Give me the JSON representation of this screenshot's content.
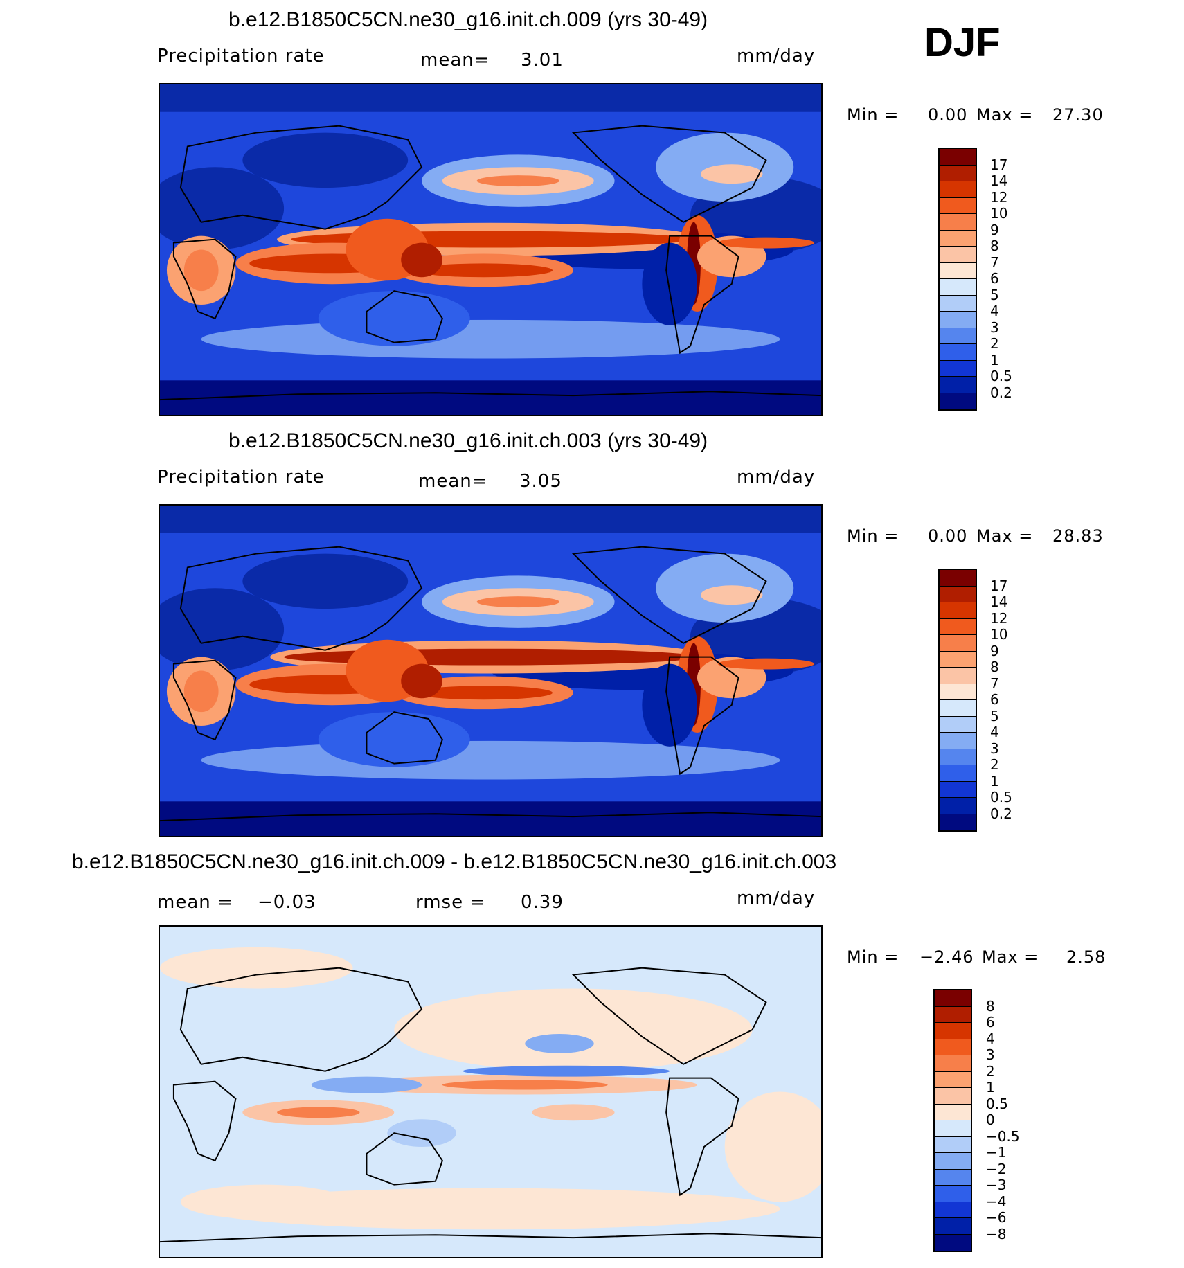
{
  "season": "DJF",
  "panels": [
    {
      "title": "b.e12.B1850C5CN.ne30_g16.init.ch.009 (yrs 30-49)",
      "left_label": "Precipitation  rate",
      "mean_label": "mean=",
      "mean_value": "3.01",
      "units": "mm/day",
      "min_label": "Min  =",
      "min_value": "0.00",
      "max_label": "Max  =",
      "max_value": "27.30",
      "colorbar": {
        "levels": [
          "17",
          "14",
          "12",
          "10",
          "9",
          "8",
          "7",
          "6",
          "5",
          "4",
          "3",
          "2",
          "1",
          "0.5",
          "0.2"
        ],
        "colors": [
          "#7a0000",
          "#b01e00",
          "#d63500",
          "#f05a1e",
          "#f77f4a",
          "#fba271",
          "#fbc4a6",
          "#fde6d4",
          "#d6e8fb",
          "#b1cdf8",
          "#84acf3",
          "#5585ee",
          "#2f5fea",
          "#1236d4",
          "#0020a8",
          "#000a80"
        ]
      }
    },
    {
      "title": "b.e12.B1850C5CN.ne30_g16.init.ch.003 (yrs 30-49)",
      "left_label": "Precipitation  rate",
      "mean_label": "mean=",
      "mean_value": "3.05",
      "units": "mm/day",
      "min_label": "Min  =",
      "min_value": "0.00",
      "max_label": "Max  =",
      "max_value": "28.83",
      "colorbar": {
        "levels": [
          "17",
          "14",
          "12",
          "10",
          "9",
          "8",
          "7",
          "6",
          "5",
          "4",
          "3",
          "2",
          "1",
          "0.5",
          "0.2"
        ],
        "colors": [
          "#7a0000",
          "#b01e00",
          "#d63500",
          "#f05a1e",
          "#f77f4a",
          "#fba271",
          "#fbc4a6",
          "#fde6d4",
          "#d6e8fb",
          "#b1cdf8",
          "#84acf3",
          "#5585ee",
          "#2f5fea",
          "#1236d4",
          "#0020a8",
          "#000a80"
        ]
      }
    },
    {
      "title": "b.e12.B1850C5CN.ne30_g16.init.ch.009 - b.e12.B1850C5CN.ne30_g16.init.ch.003",
      "mean_label": "mean  =",
      "mean_value": "−0.03",
      "rmse_label": "rmse  =",
      "rmse_value": "0.39",
      "units": "mm/day",
      "min_label": "Min  =",
      "min_value": "−2.46",
      "max_label": "Max  =",
      "max_value": "2.58",
      "colorbar": {
        "levels": [
          "8",
          "6",
          "4",
          "3",
          "2",
          "1",
          "0.5",
          "0",
          "−0.5",
          "−1",
          "−2",
          "−3",
          "−4",
          "−6",
          "−8"
        ],
        "colors": [
          "#7a0000",
          "#b01e00",
          "#d63500",
          "#f05a1e",
          "#f77f4a",
          "#fba271",
          "#fbc4a6",
          "#fde6d4",
          "#d6e8fb",
          "#b1cdf8",
          "#84acf3",
          "#5585ee",
          "#2f5fea",
          "#1236d4",
          "#0020a8",
          "#000a80"
        ]
      }
    }
  ]
}
